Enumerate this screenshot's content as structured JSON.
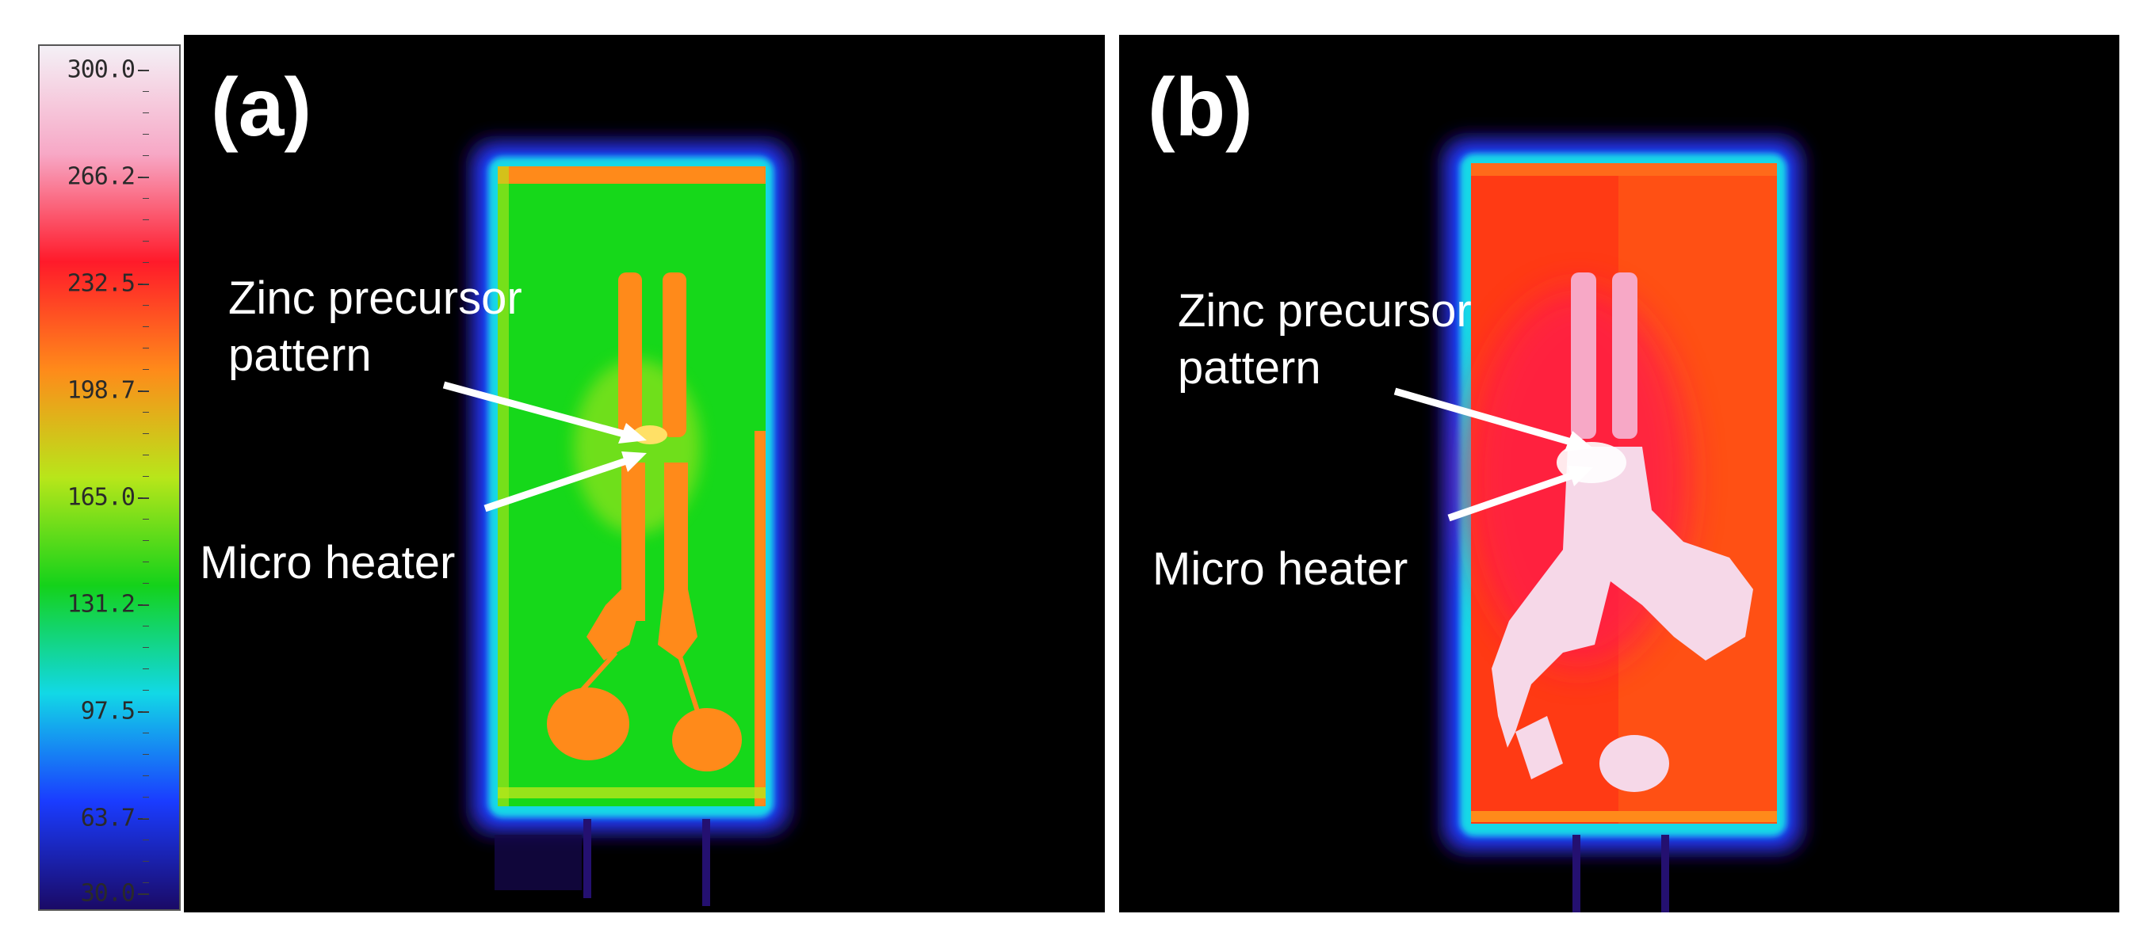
{
  "colorbar": {
    "ticks": [
      "300.0",
      "266.2",
      "232.5",
      "198.7",
      "165.0",
      "131.2",
      "97.5",
      "63.7",
      "30.0"
    ],
    "colors": [
      "#f4f0f6",
      "#f7a8c6",
      "#ff1a2a",
      "#ff8a1a",
      "#b8e61a",
      "#14d21a",
      "#12d8e6",
      "#1a3cff",
      "#1a0a66"
    ]
  },
  "panels": [
    {
      "label": "(a)",
      "annotation_top_line1": "Zinc precursor",
      "annotation_top_line2": "pattern",
      "annotation_bottom": "Micro heater"
    },
    {
      "label": "(b)",
      "annotation_top_line1": "Zinc precursor",
      "annotation_top_line2": "pattern",
      "annotation_bottom": "Micro heater"
    }
  ]
}
